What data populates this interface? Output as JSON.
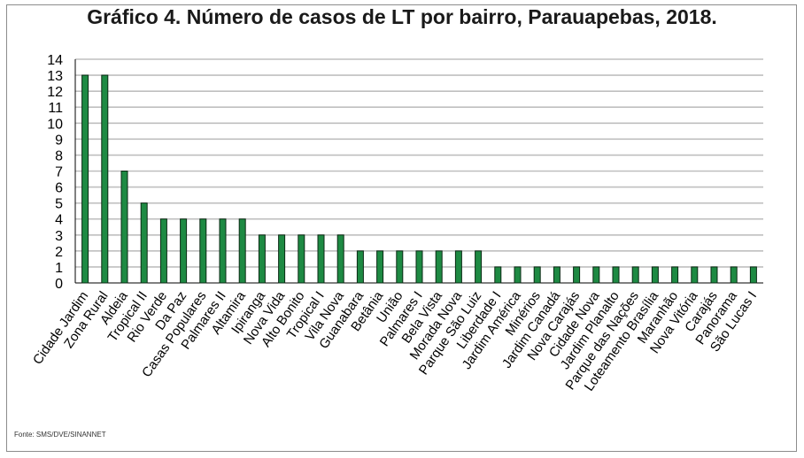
{
  "source": "Fonte: SMS/DVE/SINANNET",
  "colors": {
    "bar_fill": "#1e8a43",
    "bar_stroke": "#0b2a14",
    "grid": "#bfbfbf",
    "axis": "#000000"
  },
  "chart_data": {
    "type": "bar",
    "title": "Gráfico 4. Número de casos de LT por bairro, Parauapebas, 2018.",
    "xlabel": "",
    "ylabel": "",
    "ylim": [
      0,
      14
    ],
    "yticks": [
      0,
      1,
      2,
      3,
      4,
      5,
      6,
      7,
      8,
      9,
      10,
      11,
      12,
      13,
      14
    ],
    "grid": true,
    "legend": "none",
    "categories": [
      "Cidade Jardim",
      "Zona Rural",
      "Aldeia",
      "Tropical II",
      "Rio Verde",
      "Da Paz",
      "Casas Populares",
      "Palmares II",
      "Altamira",
      "Ipiranga",
      "Nova Vida",
      "Alto Bonito",
      "Tropical I",
      "Vila Nova",
      "Guanabara",
      "Betânia",
      "União",
      "Palmares I",
      "Bela Vista",
      "Morada Nova",
      "Parque São Luiz",
      "Liberdade I",
      "Jardim América",
      "Minérios",
      "Jardim Canadá",
      "Nova Carajás",
      "Cidade Nova",
      "Jardim Planalto",
      "Parque das Nações",
      "Loteamento Brasília",
      "Maranhão",
      "Nova Vitória",
      "Carajás",
      "Panorama",
      "São Lucas I"
    ],
    "values": [
      13,
      13,
      7,
      5,
      4,
      4,
      4,
      4,
      4,
      3,
      3,
      3,
      3,
      3,
      2,
      2,
      2,
      2,
      2,
      2,
      2,
      1,
      1,
      1,
      1,
      1,
      1,
      1,
      1,
      1,
      1,
      1,
      1,
      1,
      1
    ]
  }
}
